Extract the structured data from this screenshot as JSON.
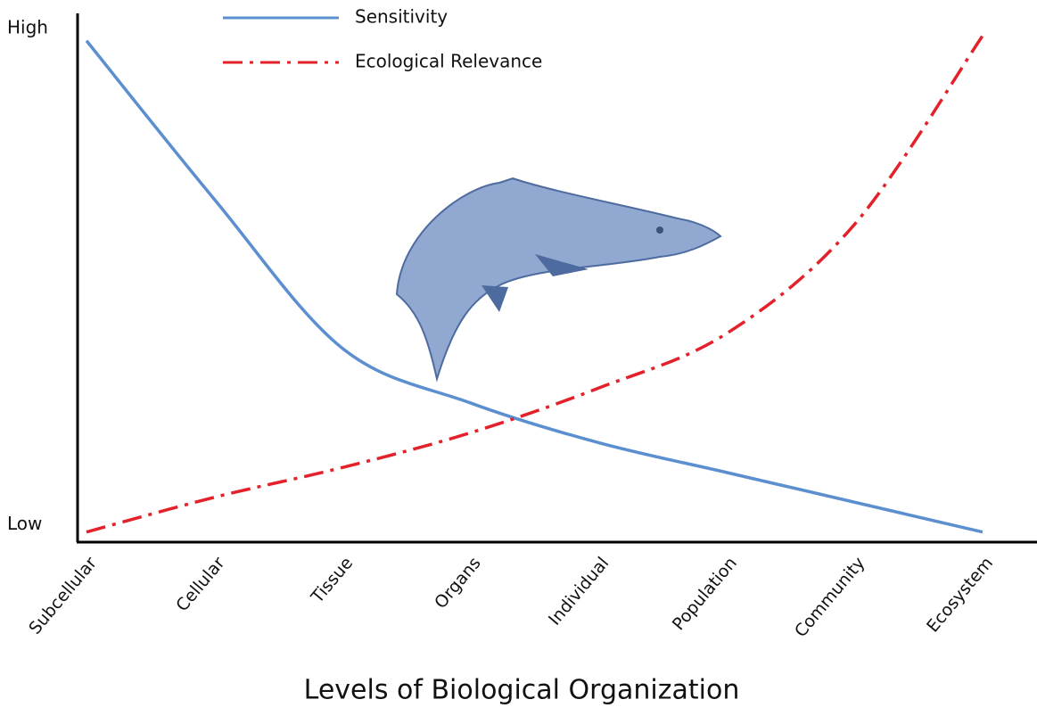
{
  "chart_data": {
    "type": "line",
    "x_label": "Levels of Biological Organization",
    "categories": [
      "Subcellular",
      "Cellular",
      "Tissue",
      "Organs",
      "Individual",
      "Population",
      "Community",
      "Ecosystem"
    ],
    "series": [
      {
        "name": "Sensitivity",
        "color": "#5b8fcf",
        "style": "solid",
        "values": [
          0.99,
          0.67,
          0.37,
          0.26,
          0.18,
          0.12,
          0.06,
          0
        ]
      },
      {
        "name": "Ecological Relevance",
        "color": "#e3212b",
        "style": "dashdot",
        "values": [
          0,
          0.07,
          0.13,
          0.2,
          0.29,
          0.4,
          0.62,
          1.0
        ]
      }
    ],
    "ylim": [
      -0.015,
      1.045
    ],
    "yticks": [
      {
        "value": 1,
        "label": "High"
      },
      {
        "value": 0,
        "label": "Low"
      }
    ],
    "grid": false,
    "legend": "top"
  }
}
